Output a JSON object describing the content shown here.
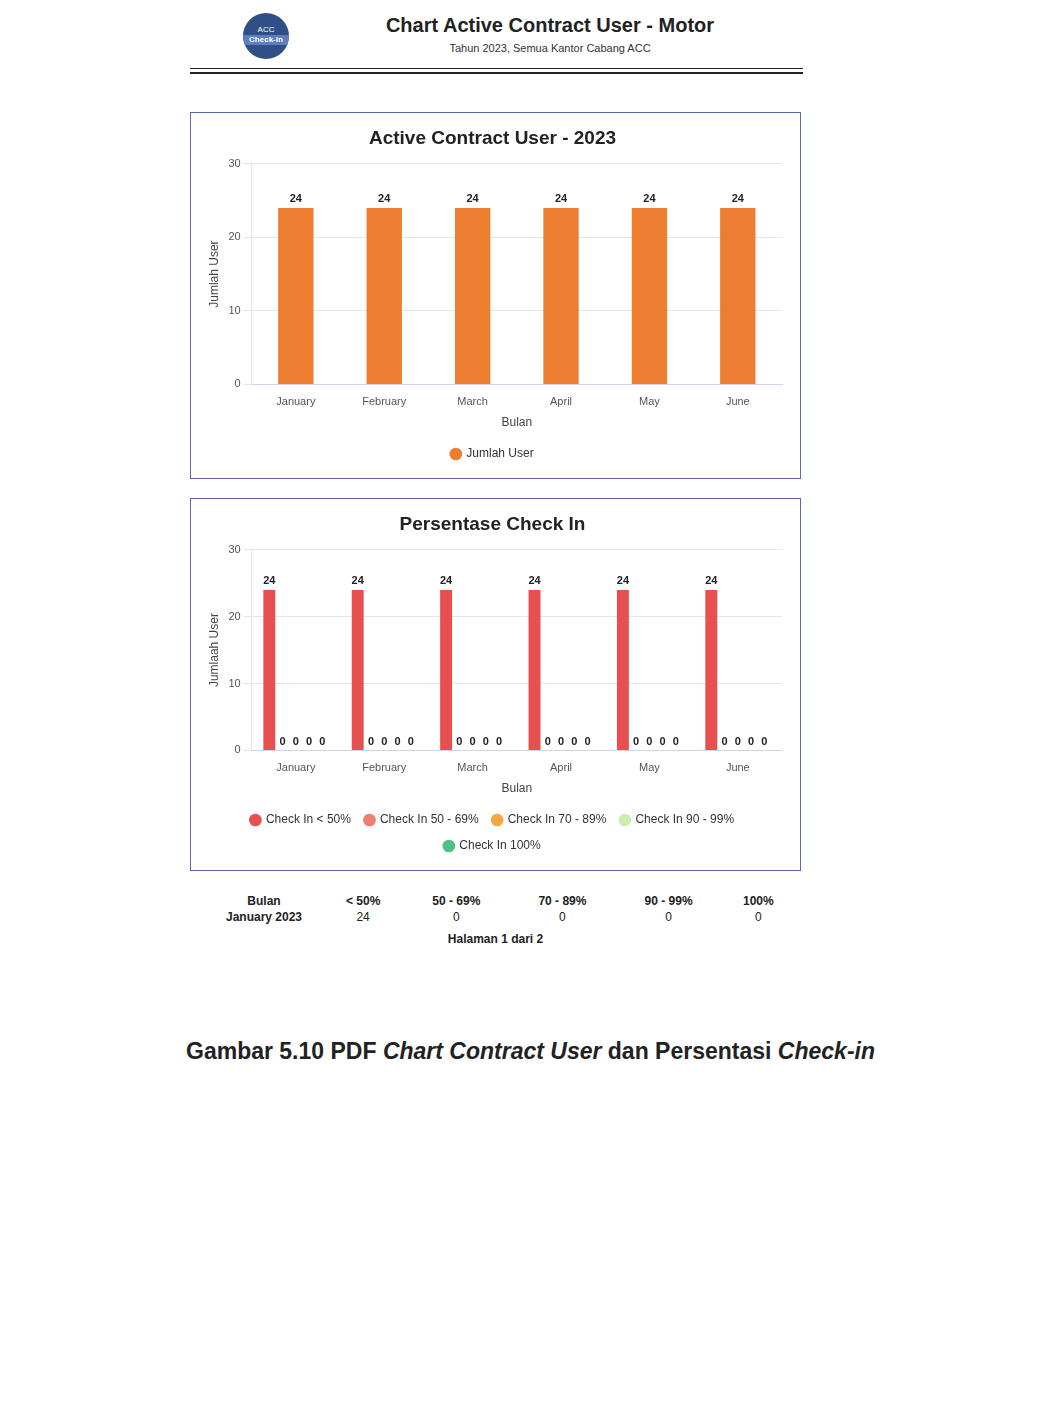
{
  "header": {
    "logo_text": [
      "ACC",
      "Check-in"
    ],
    "title": "Chart Active Contract User - Motor",
    "subtitle": "Tahun 2023, Semua Kantor Cabang ACC"
  },
  "chart_data": [
    {
      "type": "bar",
      "title": "Active Contract User - 2023",
      "x_label": "Bulan",
      "y_label": "Jumlah User",
      "categories": [
        "January",
        "February",
        "March",
        "April",
        "May",
        "June"
      ],
      "series": [
        {
          "name": "Jumlah User",
          "color": "#ed7d31",
          "values": [
            24,
            24,
            24,
            24,
            24,
            24
          ]
        }
      ],
      "ylim": [
        0,
        30
      ],
      "yticks": [
        0,
        10,
        20,
        30
      ],
      "grid": true,
      "legend": "bottom",
      "data_labels": true
    },
    {
      "type": "bar",
      "title": "Persentase Check In",
      "x_label": "Bulan",
      "y_label": "Jumlaah User",
      "categories": [
        "January",
        "February",
        "March",
        "April",
        "May",
        "June"
      ],
      "series": [
        {
          "name": "Check In < 50%",
          "color": "#e84f4f",
          "values": [
            24,
            24,
            24,
            24,
            24,
            24
          ]
        },
        {
          "name": "Check In 50 - 69%",
          "color": "#ef7f6f",
          "values": [
            0,
            0,
            0,
            0,
            0,
            0
          ]
        },
        {
          "name": "Check In 70 - 89%",
          "color": "#f4a83f",
          "values": [
            0,
            0,
            0,
            0,
            0,
            0
          ]
        },
        {
          "name": "Check In 90 - 99%",
          "color": "#cdecb0",
          "values": [
            0,
            0,
            0,
            0,
            0,
            0
          ]
        },
        {
          "name": "Check In 100%",
          "color": "#4fc086",
          "values": [
            0,
            0,
            0,
            0,
            0,
            0
          ]
        }
      ],
      "ylim": [
        0,
        30
      ],
      "yticks": [
        0,
        10,
        20,
        30
      ],
      "grid": true,
      "legend": "bottom",
      "data_labels": true
    }
  ],
  "table": {
    "rows": [
      [
        "Bulan",
        "< 50%",
        "50 - 69%",
        "70 - 89%",
        "90 - 99%",
        "100%"
      ],
      [
        "January 2023",
        24,
        0,
        0,
        0,
        0
      ]
    ]
  },
  "footer": "Halaman 1 dari 2",
  "caption": [
    "Gambar 5.10 PDF ",
    "Chart Contract User",
    " dan Persentasi ",
    "Check-in"
  ]
}
